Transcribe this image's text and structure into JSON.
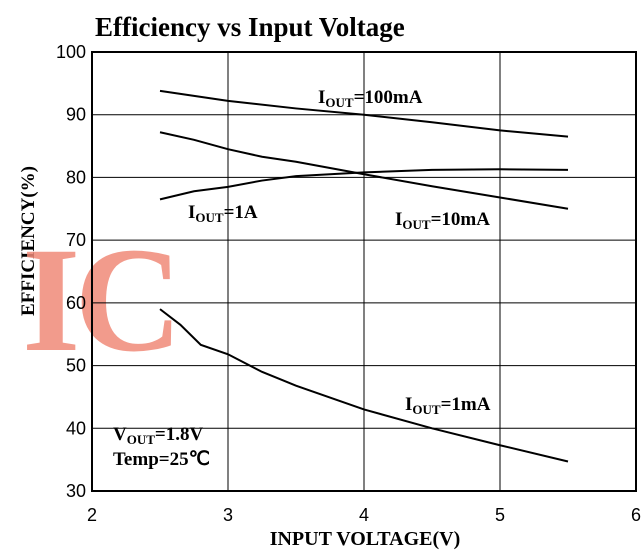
{
  "chart_data": {
    "type": "line",
    "title": "Efficiency vs Input Voltage",
    "x_label": "INPUT VOLTAGE(V)",
    "y_label": "EFFICIENCY(%)",
    "watermark": "IC",
    "xlim": [
      2,
      6
    ],
    "xticks": [
      2,
      3,
      4,
      5,
      6
    ],
    "ylim": [
      30,
      100
    ],
    "yticks": [
      30,
      40,
      50,
      60,
      70,
      80,
      90,
      100
    ],
    "grid": true,
    "annotations": [
      [
        "V",
        "OUT",
        "=1.8V"
      ],
      [
        "Temp=25℃"
      ]
    ],
    "series": [
      {
        "name": [
          "I",
          "OUT",
          "=100mA"
        ],
        "color": "#000000",
        "x": [
          2.5,
          3.0,
          3.5,
          4.0,
          4.5,
          5.0,
          5.5
        ],
        "values": [
          93.8,
          92.2,
          91,
          90,
          88.8,
          87.5,
          86.5
        ]
      },
      {
        "name": [
          "I",
          "OUT",
          "=1A"
        ],
        "color": "#000000",
        "x": [
          2.5,
          2.75,
          3.0,
          3.25,
          3.5,
          4.0,
          4.5,
          5.0,
          5.5
        ],
        "values": [
          76.5,
          77.8,
          78.5,
          79.5,
          80.2,
          80.8,
          81.2,
          81.3,
          81.2
        ]
      },
      {
        "name": [
          "I",
          "OUT",
          "=10mA"
        ],
        "color": "#000000",
        "x": [
          2.5,
          2.75,
          3.0,
          3.25,
          3.5,
          4.0,
          4.5,
          5.0,
          5.5
        ],
        "values": [
          87.2,
          86,
          84.5,
          83.3,
          82.5,
          80.5,
          78.6,
          76.8,
          75
        ]
      },
      {
        "name": [
          "I",
          "OUT",
          "=1mA"
        ],
        "color": "#000000",
        "x": [
          2.5,
          2.65,
          2.8,
          3.0,
          3.25,
          3.5,
          4.0,
          4.5,
          5.0,
          5.5
        ],
        "values": [
          59,
          56.5,
          53.3,
          51.8,
          49,
          46.8,
          43,
          40,
          37.3,
          34.7
        ]
      }
    ]
  }
}
